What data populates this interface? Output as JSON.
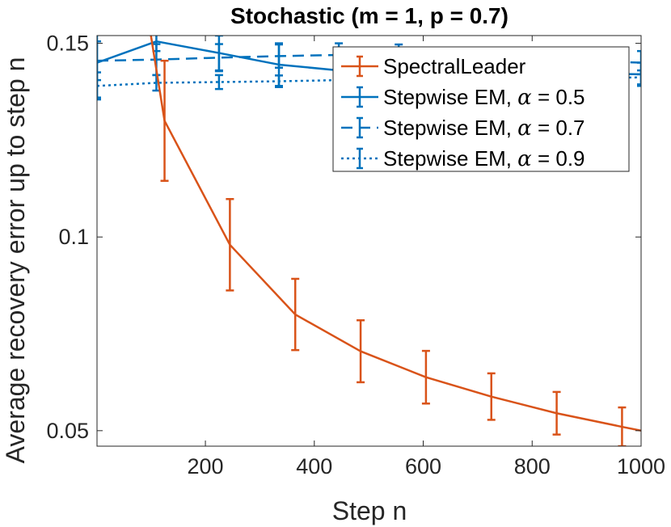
{
  "chart_data": {
    "type": "line",
    "title": "Stochastic (m = 1, p = 0.7)",
    "xlabel": "Step n",
    "ylabel": "Average recovery error up to step n",
    "xlim": [
      1,
      1000
    ],
    "ylim": [
      0.046,
      0.152
    ],
    "xticks": [
      200,
      400,
      600,
      800,
      1000
    ],
    "xtick_labels": [
      "200",
      "400",
      "600",
      "800",
      "1000"
    ],
    "yticks": [
      0.05,
      0.1,
      0.15
    ],
    "ytick_labels": [
      "0.05",
      "0.1",
      "0.15"
    ],
    "grid": false,
    "legend_position": "top-right",
    "series": [
      {
        "name": "SpectralLeader",
        "color": "#D95319",
        "style": "solid",
        "x": [
          100,
          125,
          245,
          365,
          485,
          605,
          725,
          845,
          965,
          1000
        ],
        "y": [
          0.152,
          0.13,
          0.098,
          0.08,
          0.0705,
          0.0638,
          0.0588,
          0.0545,
          0.051,
          0.05
        ],
        "err": [
          null,
          0.0155,
          0.0118,
          0.0092,
          0.008,
          0.0068,
          0.006,
          0.0055,
          0.005,
          null
        ]
      },
      {
        "name": "Stepwise EM, α = 0.5",
        "color": "#0072BD",
        "style": "solid",
        "x": [
          1,
          110,
          225,
          335,
          445,
          1000
        ],
        "y": [
          0.145,
          0.1505,
          0.1475,
          0.1445,
          0.143,
          0.142
        ],
        "err": [
          0.009,
          0.0025,
          0.0045,
          0.0055,
          0.004,
          0.003
        ]
      },
      {
        "name": "Stepwise EM, α = 0.7",
        "color": "#0072BD",
        "style": "dashed",
        "x": [
          1,
          110,
          225,
          335,
          445,
          555,
          1000
        ],
        "y": [
          0.1455,
          0.1458,
          0.1463,
          0.1467,
          0.147,
          0.1472,
          0.145
        ],
        "err": [
          0.005,
          0.004,
          0.0035,
          0.003,
          0.003,
          0.0025,
          0.003
        ]
      },
      {
        "name": "Stepwise EM, α = 0.9",
        "color": "#0072BD",
        "style": "dotted",
        "x": [
          1,
          110,
          225,
          335,
          445,
          1000
        ],
        "y": [
          0.139,
          0.1398,
          0.14,
          0.1402,
          0.1405,
          0.1412
        ],
        "err": [
          0.0035,
          0.002,
          0.0018,
          0.0015,
          0.0015,
          0.0018
        ]
      }
    ],
    "legend": [
      {
        "label_prefix": "SpectralLeader",
        "alpha": "",
        "label_suffix": ""
      },
      {
        "label_prefix": "Stepwise EM, ",
        "alpha": "α",
        "label_suffix": " = 0.5"
      },
      {
        "label_prefix": "Stepwise EM, ",
        "alpha": "α",
        "label_suffix": " = 0.7"
      },
      {
        "label_prefix": "Stepwise EM, ",
        "alpha": "α",
        "label_suffix": " = 0.9"
      }
    ]
  }
}
